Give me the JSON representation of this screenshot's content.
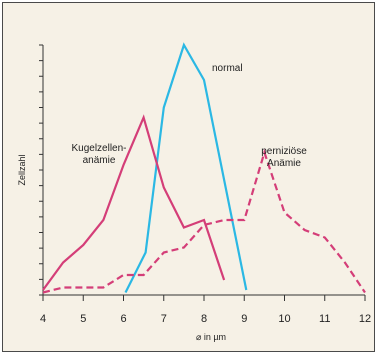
{
  "chart_data": {
    "type": "line",
    "xlabel": "⌀ in µm",
    "ylabel": "Zellzahl",
    "xlim": [
      4,
      12
    ],
    "ylim": [
      0,
      100
    ],
    "x_ticks": [
      "4",
      "5",
      "6",
      "7",
      "8",
      "9",
      "10",
      "11",
      "12"
    ],
    "grid": false,
    "series": [
      {
        "name": "normal",
        "color": "#2bb8e4",
        "style": "solid",
        "x": [
          6.05,
          6.55,
          7.0,
          7.5,
          8.0,
          9.05
        ],
        "y": [
          1,
          17,
          75,
          100,
          86,
          2
        ]
      },
      {
        "name": "Kugelzellen-\nanämie",
        "color": "#d43e78",
        "style": "solid",
        "x": [
          4.0,
          4.5,
          5.0,
          5.5,
          6.0,
          6.5,
          7.0,
          7.5,
          8.0,
          8.5
        ],
        "y": [
          2,
          13,
          20,
          30,
          52,
          71,
          43,
          27,
          30,
          6
        ]
      },
      {
        "name": "perniziöse\nAnämie",
        "color": "#d43e78",
        "style": "dashed",
        "x": [
          4.0,
          4.5,
          5.0,
          5.5,
          6.0,
          6.5,
          7.0,
          7.5,
          8.0,
          8.5,
          9.0,
          9.5,
          10.0,
          10.5,
          11.0,
          11.5,
          12.0
        ],
        "y": [
          1,
          3,
          3,
          3,
          8,
          8,
          17,
          19,
          28,
          30,
          30,
          57,
          33,
          26,
          23,
          13,
          1
        ]
      }
    ],
    "annotations": [
      {
        "text": "normal",
        "series": 0
      },
      {
        "text": "Kugelzellen-\nanämie",
        "series": 1
      },
      {
        "text": "perniziöse\nAnämie",
        "series": 2
      }
    ]
  }
}
